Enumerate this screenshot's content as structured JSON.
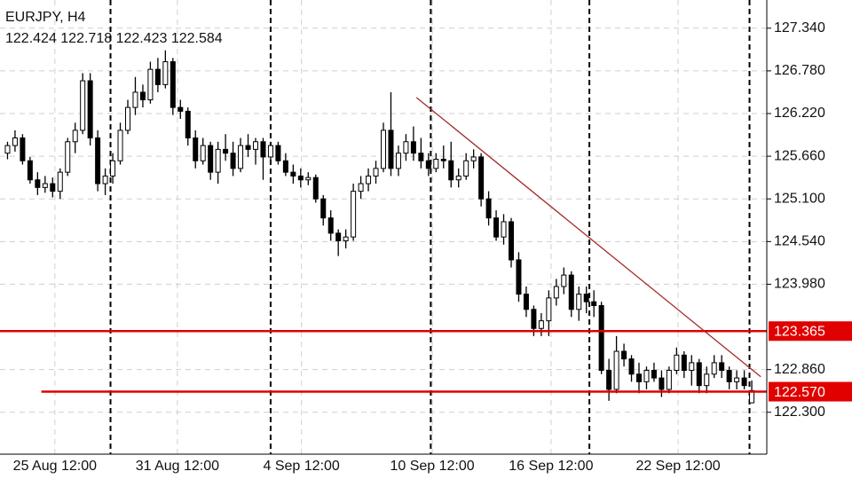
{
  "chart_data": {
    "type": "candlestick",
    "title": "EURJPY, H4",
    "subtitle": "122.424 122.718 122.423 122.584",
    "ohlc": [
      [
        125.7,
        125.85,
        125.62,
        125.8
      ],
      [
        125.8,
        126.0,
        125.72,
        125.9
      ],
      [
        125.9,
        125.95,
        125.55,
        125.6
      ],
      [
        125.6,
        125.65,
        125.3,
        125.35
      ],
      [
        125.35,
        125.45,
        125.15,
        125.25
      ],
      [
        125.25,
        125.4,
        125.18,
        125.3
      ],
      [
        125.3,
        125.38,
        125.12,
        125.2
      ],
      [
        125.2,
        125.5,
        125.1,
        125.45
      ],
      [
        125.45,
        125.9,
        125.4,
        125.85
      ],
      [
        125.85,
        126.1,
        125.7,
        126.0
      ],
      [
        126.0,
        126.75,
        125.95,
        126.65
      ],
      [
        126.65,
        126.75,
        125.8,
        125.9
      ],
      [
        125.9,
        126.0,
        125.2,
        125.3
      ],
      [
        125.3,
        125.5,
        125.15,
        125.4
      ],
      [
        125.4,
        125.7,
        125.3,
        125.6
      ],
      [
        125.6,
        126.1,
        125.55,
        126.0
      ],
      [
        126.0,
        126.4,
        125.95,
        126.3
      ],
      [
        126.3,
        126.7,
        126.2,
        126.5
      ],
      [
        126.5,
        126.6,
        126.3,
        126.4
      ],
      [
        126.4,
        126.9,
        126.35,
        126.8
      ],
      [
        126.8,
        126.95,
        126.5,
        126.6
      ],
      [
        126.6,
        127.05,
        126.55,
        126.9
      ],
      [
        126.9,
        126.95,
        126.2,
        126.3
      ],
      [
        126.3,
        126.4,
        126.15,
        126.25
      ],
      [
        126.25,
        126.3,
        125.8,
        125.9
      ],
      [
        125.9,
        126.0,
        125.5,
        125.6
      ],
      [
        125.6,
        125.9,
        125.55,
        125.8
      ],
      [
        125.8,
        125.85,
        125.35,
        125.45
      ],
      [
        125.45,
        125.85,
        125.3,
        125.75
      ],
      [
        125.75,
        125.95,
        125.6,
        125.7
      ],
      [
        125.7,
        125.85,
        125.4,
        125.5
      ],
      [
        125.5,
        125.9,
        125.45,
        125.8
      ],
      [
        125.8,
        125.95,
        125.65,
        125.75
      ],
      [
        125.75,
        125.9,
        125.55,
        125.85
      ],
      [
        125.85,
        125.9,
        125.35,
        125.65
      ],
      [
        125.65,
        125.85,
        125.6,
        125.8
      ],
      [
        125.8,
        125.85,
        125.55,
        125.6
      ],
      [
        125.6,
        125.7,
        125.4,
        125.45
      ],
      [
        125.45,
        125.55,
        125.3,
        125.4
      ],
      [
        125.4,
        125.5,
        125.25,
        125.35
      ],
      [
        125.35,
        125.45,
        125.28,
        125.38
      ],
      [
        125.38,
        125.42,
        125.05,
        125.1
      ],
      [
        125.1,
        125.15,
        124.75,
        124.85
      ],
      [
        124.85,
        124.95,
        124.55,
        124.65
      ],
      [
        124.65,
        124.7,
        124.35,
        124.55
      ],
      [
        124.55,
        124.7,
        124.45,
        124.6
      ],
      [
        124.6,
        125.3,
        124.55,
        125.2
      ],
      [
        125.2,
        125.4,
        125.1,
        125.3
      ],
      [
        125.3,
        125.5,
        125.2,
        125.4
      ],
      [
        125.4,
        125.6,
        125.3,
        125.5
      ],
      [
        125.5,
        126.1,
        125.45,
        126.0
      ],
      [
        126.0,
        126.5,
        125.4,
        125.5
      ],
      [
        125.5,
        125.8,
        125.4,
        125.7
      ],
      [
        125.7,
        125.95,
        125.6,
        125.85
      ],
      [
        125.85,
        126.05,
        125.6,
        125.7
      ],
      [
        125.7,
        125.9,
        125.5,
        125.6
      ],
      [
        125.6,
        125.7,
        125.4,
        125.5
      ],
      [
        125.5,
        125.7,
        125.45,
        125.62
      ],
      [
        125.62,
        125.8,
        125.5,
        125.6
      ],
      [
        125.6,
        125.85,
        125.25,
        125.35
      ],
      [
        125.35,
        125.5,
        125.25,
        125.4
      ],
      [
        125.4,
        125.7,
        125.35,
        125.6
      ],
      [
        125.6,
        125.75,
        125.5,
        125.65
      ],
      [
        125.65,
        125.7,
        125.0,
        125.1
      ],
      [
        125.1,
        125.2,
        124.75,
        124.85
      ],
      [
        124.85,
        124.95,
        124.55,
        124.6
      ],
      [
        124.6,
        124.9,
        124.5,
        124.8
      ],
      [
        124.8,
        124.85,
        124.2,
        124.3
      ],
      [
        124.3,
        124.4,
        123.75,
        123.85
      ],
      [
        123.85,
        123.95,
        123.55,
        123.65
      ],
      [
        123.65,
        123.7,
        123.3,
        123.4
      ],
      [
        123.4,
        123.6,
        123.3,
        123.5
      ],
      [
        123.5,
        123.9,
        123.3,
        123.8
      ],
      [
        123.8,
        124.05,
        123.7,
        123.95
      ],
      [
        123.95,
        124.2,
        123.85,
        124.1
      ],
      [
        124.1,
        124.15,
        123.55,
        123.65
      ],
      [
        123.65,
        123.95,
        123.5,
        123.85
      ],
      [
        123.85,
        123.95,
        123.6,
        123.75
      ],
      [
        123.75,
        123.9,
        123.55,
        123.7
      ],
      [
        123.7,
        123.75,
        122.8,
        122.85
      ],
      [
        122.85,
        123.0,
        122.45,
        122.6
      ],
      [
        122.6,
        123.3,
        122.55,
        123.1
      ],
      [
        123.1,
        123.2,
        122.9,
        123.0
      ],
      [
        123.0,
        123.05,
        122.7,
        122.8
      ],
      [
        122.8,
        122.95,
        122.55,
        122.7
      ],
      [
        122.7,
        122.9,
        122.6,
        122.85
      ],
      [
        122.85,
        122.95,
        122.7,
        122.75
      ],
      [
        122.75,
        122.85,
        122.5,
        122.6
      ],
      [
        122.6,
        122.9,
        122.55,
        122.85
      ],
      [
        122.85,
        123.15,
        122.8,
        123.05
      ],
      [
        123.05,
        123.1,
        122.75,
        122.85
      ],
      [
        122.85,
        123.05,
        122.65,
        122.95
      ],
      [
        122.95,
        123.0,
        122.55,
        122.65
      ],
      [
        122.65,
        122.9,
        122.55,
        122.8
      ],
      [
        122.8,
        123.05,
        122.75,
        122.95
      ],
      [
        122.95,
        123.05,
        122.75,
        122.85
      ],
      [
        122.85,
        122.9,
        122.6,
        122.7
      ],
      [
        122.7,
        122.85,
        122.6,
        122.75
      ],
      [
        122.75,
        122.85,
        122.6,
        122.65
      ],
      [
        122.424,
        122.718,
        122.423,
        122.584
      ]
    ],
    "up_color": "#ffffff",
    "down_color": "#000000",
    "xlim": [
      -1,
      101
    ],
    "xticks": [
      {
        "value": 6.3,
        "label": "25 Aug 12:00"
      },
      {
        "value": 22.6,
        "label": "31 Aug 12:00"
      },
      {
        "value": 39.1,
        "label": "4 Sep 12:00"
      },
      {
        "value": 56.5,
        "label": "10 Sep 12:00"
      },
      {
        "value": 72.3,
        "label": "16 Sep 12:00"
      },
      {
        "value": 89.2,
        "label": "22 Sep 12:00"
      }
    ],
    "vlines": [
      13.7,
      35,
      56.3,
      77.4,
      98.7
    ],
    "ylim": [
      121.75,
      127.71
    ],
    "yticks": [
      {
        "value": 127.34,
        "label": "127.340"
      },
      {
        "value": 126.78,
        "label": "126.780"
      },
      {
        "value": 126.22,
        "label": "126.220"
      },
      {
        "value": 125.66,
        "label": "125.660"
      },
      {
        "value": 125.1,
        "label": "125.100"
      },
      {
        "value": 124.54,
        "label": "124.540"
      },
      {
        "value": 123.98,
        "label": "123.980"
      },
      {
        "value": 122.86,
        "label": "122.860"
      },
      {
        "value": 122.3,
        "label": "122.300"
      }
    ],
    "grid": true,
    "hlines": [
      {
        "value": 123.365,
        "color": "#e00000"
      },
      {
        "value": 122.57,
        "label": "122.570",
        "color": "#e00000",
        "start": 4.5
      }
    ],
    "trendlines": [
      {
        "x": [
          54.4,
          100.2
        ],
        "y": [
          126.43,
          122.765
        ],
        "color": "#a52a2a"
      }
    ]
  }
}
